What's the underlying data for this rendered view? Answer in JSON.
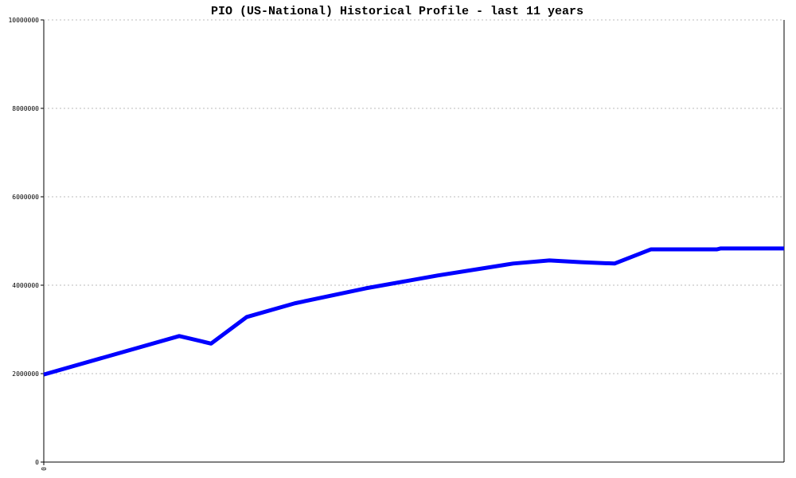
{
  "chart_data": {
    "type": "line",
    "title": "PIO (US-National) Historical Profile - last 11 years",
    "x": [
      0,
      18.3,
      22.6,
      27.4,
      33.9,
      43.5,
      53.2,
      63.4,
      68.3,
      72.6,
      77.1,
      82.0,
      90.9,
      91.4,
      100
    ],
    "series": [
      {
        "color": "#0000ff",
        "values": [
          1980000,
          2850000,
          2680000,
          3280000,
          3590000,
          3930000,
          4220000,
          4490000,
          4560000,
          4520000,
          4490000,
          4810000,
          4810000,
          4830000,
          4830000
        ]
      }
    ],
    "xlim": [
      0,
      100
    ],
    "xticks": [
      0
    ],
    "ylim": [
      0,
      10000000
    ],
    "yticks": [
      0,
      2000000,
      4000000,
      6000000,
      8000000,
      10000000
    ],
    "grid": true
  }
}
